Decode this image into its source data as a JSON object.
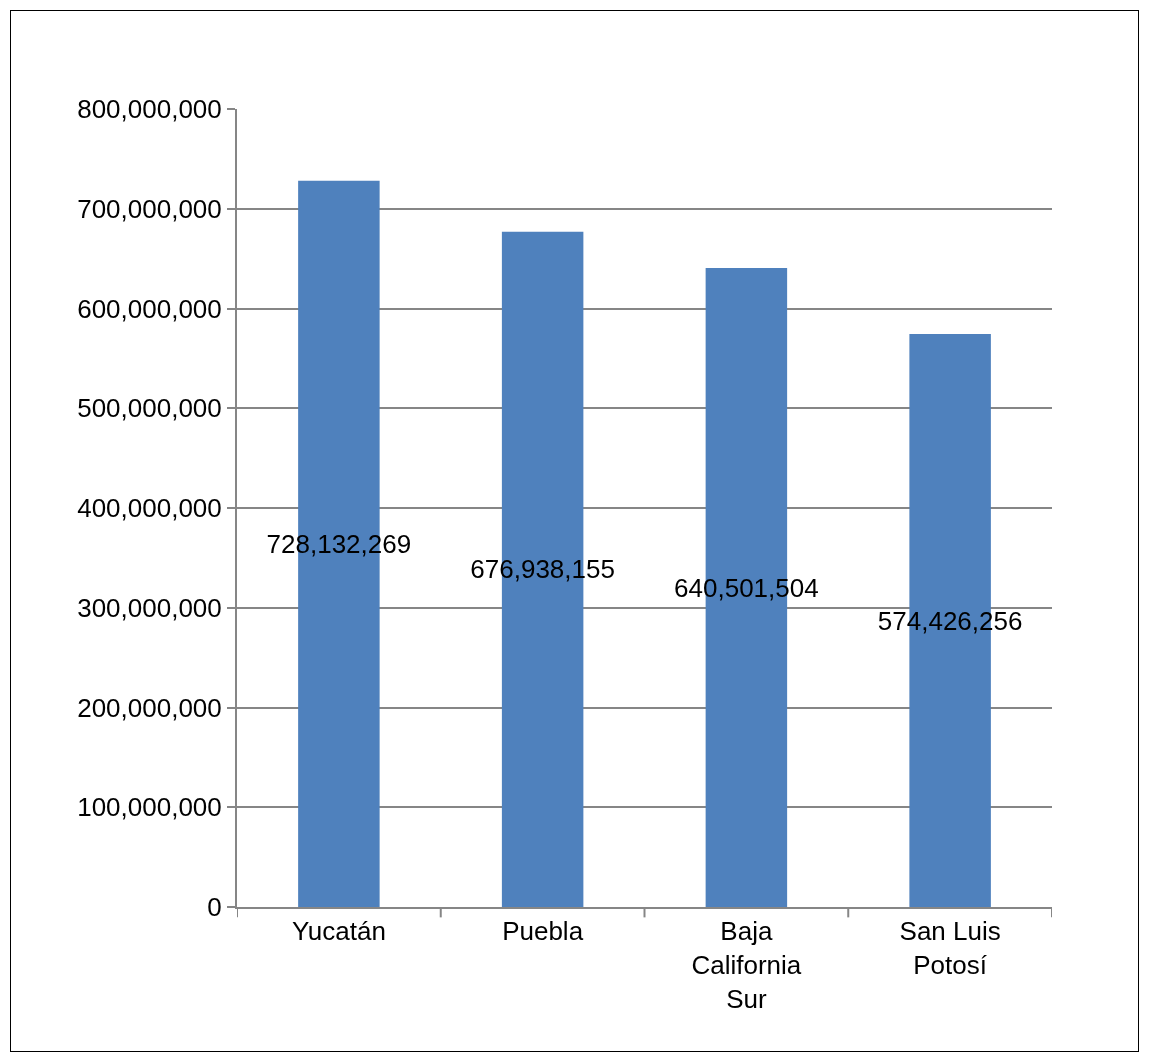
{
  "chart_data": {
    "type": "bar",
    "categories": [
      "Yucatán",
      "Puebla",
      "Baja California Sur",
      "San Luis Potosí"
    ],
    "values": [
      728132269,
      676938155,
      640501504,
      574426256
    ],
    "value_labels": [
      "728,132,269",
      "676,938,155",
      "640,501,504",
      "574,426,256"
    ],
    "color": "#4f81bd",
    "ylim": [
      0,
      800000000
    ],
    "yticks": [
      {
        "value": 0,
        "label": "0"
      },
      {
        "value": 100000000,
        "label": "100,000,000"
      },
      {
        "value": 200000000,
        "label": "200,000,000"
      },
      {
        "value": 300000000,
        "label": "300,000,000"
      },
      {
        "value": 400000000,
        "label": "400,000,000"
      },
      {
        "value": 500000000,
        "label": "500,000,000"
      },
      {
        "value": 600000000,
        "label": "600,000,000"
      },
      {
        "value": 700000000,
        "label": "700,000,000"
      },
      {
        "value": 800000000,
        "label": "800,000,000"
      }
    ],
    "grid": "y",
    "legend": false
  }
}
